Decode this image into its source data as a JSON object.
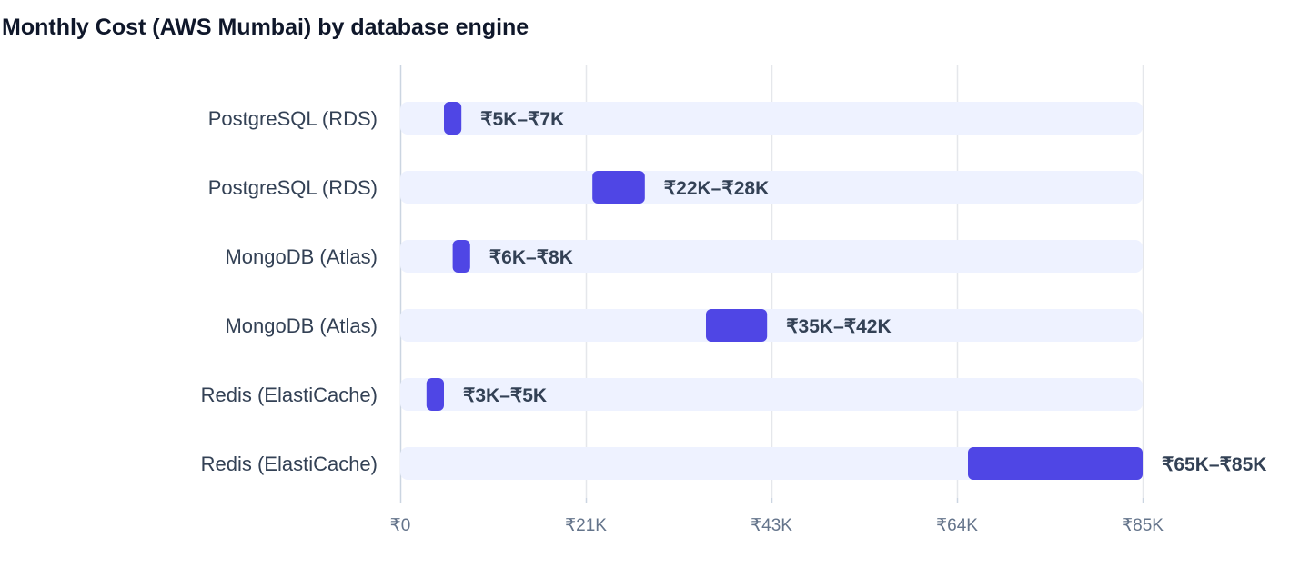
{
  "chart_data": {
    "type": "bar",
    "subtype": "floating-range-horizontal",
    "title": "Monthly Cost (AWS Mumbai) by database engine",
    "xlabel": "",
    "ylabel": "",
    "categories": [
      "PostgreSQL (RDS)",
      "PostgreSQL (RDS)",
      "MongoDB (Atlas)",
      "MongoDB (Atlas)",
      "Redis (ElastiCache)",
      "Redis (ElastiCache)"
    ],
    "ranges": [
      [
        5000,
        7000
      ],
      [
        22000,
        28000
      ],
      [
        6000,
        8000
      ],
      [
        35000,
        42000
      ],
      [
        3000,
        5000
      ],
      [
        65000,
        85000
      ]
    ],
    "value_labels": [
      "₹5K–₹7K",
      "₹22K–₹28K",
      "₹6K–₹8K",
      "₹35K–₹42K",
      "₹3K–₹5K",
      "₹65K–₹85K"
    ],
    "xlim": [
      0,
      85000
    ],
    "x_ticks": [
      0,
      21250,
      42500,
      63750,
      85000
    ],
    "x_tick_labels": [
      "₹0",
      "₹21K",
      "₹43K",
      "₹64K",
      "₹85K"
    ],
    "grid": true,
    "colors": {
      "bar": "#4f46e5",
      "track": "#eef2ff",
      "grid": "#e5e7eb",
      "axis": "#cbd5e1"
    }
  }
}
